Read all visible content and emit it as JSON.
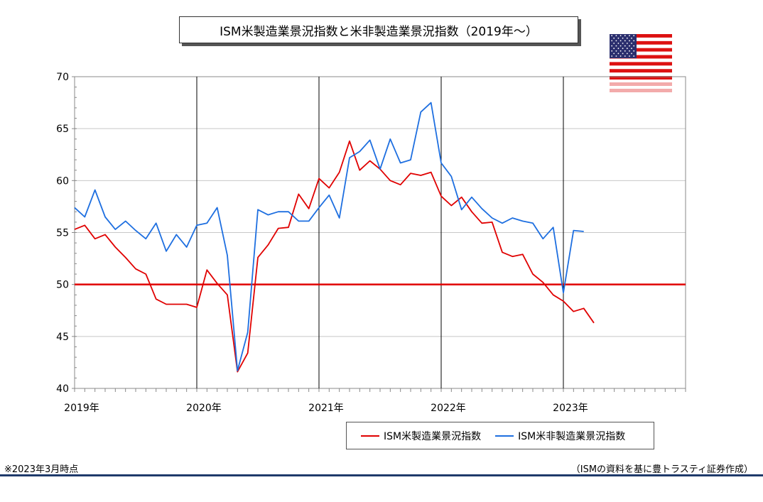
{
  "title": "ISM米製造業景況指数と米非製造業景況指数（2019年～）",
  "footer": {
    "note": "※2023年3月時点",
    "source": "（ISMの資料を基に豊トラスティ証券作成）"
  },
  "flag_icon": "us-flag-icon",
  "chart_data": {
    "type": "line",
    "title": "ISM米製造業景況指数と米非製造業景況指数（2019年～）",
    "ylim": [
      40,
      70
    ],
    "yticks": [
      40,
      45,
      50,
      55,
      60,
      65,
      70
    ],
    "xlim": [
      2019.0,
      2024.0
    ],
    "xtick_labels": [
      "2019年",
      "2020年",
      "2021年",
      "2022年",
      "2023年"
    ],
    "grid": true,
    "legend_position": "bottom-right",
    "reference_line": {
      "y": 50,
      "color": "#e00000"
    },
    "series": [
      {
        "name": "ISM米製造業景況指数",
        "color": "#e00000",
        "start": "2019-01",
        "values": [
          55.3,
          55.7,
          54.4,
          54.8,
          53.6,
          52.6,
          51.5,
          51.0,
          48.6,
          48.1,
          48.1,
          48.1,
          47.8,
          51.4,
          50.1,
          49.0,
          41.6,
          43.4,
          52.6,
          53.8,
          55.4,
          55.5,
          58.7,
          57.3,
          60.2,
          59.3,
          60.8,
          63.8,
          61.0,
          61.9,
          61.1,
          60.0,
          59.6,
          60.7,
          60.5,
          60.8,
          58.5,
          57.6,
          58.4,
          57.0,
          55.9,
          56.0,
          53.1,
          52.7,
          52.9,
          51.0,
          50.2,
          49.0,
          48.4,
          47.4,
          47.7,
          46.3
        ]
      },
      {
        "name": "ISM米非製造業景況指数",
        "color": "#1e6fe0",
        "start": "2019-01",
        "values": [
          57.4,
          56.5,
          59.1,
          56.5,
          55.3,
          56.1,
          55.2,
          54.4,
          55.9,
          53.2,
          54.8,
          53.6,
          55.7,
          55.9,
          57.4,
          52.8,
          41.7,
          45.4,
          57.2,
          56.7,
          57.0,
          57.0,
          56.1,
          56.1,
          57.4,
          58.6,
          56.4,
          62.2,
          62.8,
          63.9,
          61.1,
          64.0,
          61.7,
          62.0,
          66.6,
          67.5,
          61.7,
          60.4,
          57.2,
          58.4,
          57.3,
          56.4,
          55.9,
          56.4,
          56.1,
          55.9,
          54.4,
          55.5,
          49.2,
          55.2,
          55.1
        ]
      }
    ]
  }
}
